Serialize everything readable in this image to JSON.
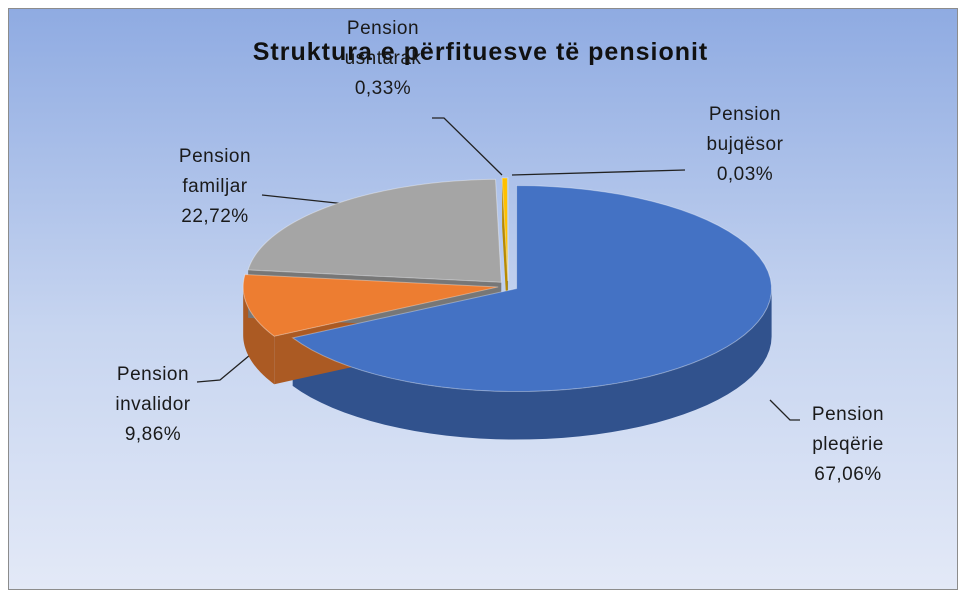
{
  "chart_data": {
    "type": "pie3d",
    "title": "Struktura e përfituesve të pensionit",
    "categories": [
      "Pension pleqërie",
      "Pension invalidor",
      "Pension familjar",
      "Pension ushtarak",
      "Pension bujqësor"
    ],
    "values": [
      67.06,
      9.86,
      22.72,
      0.33,
      0.03
    ],
    "value_labels": [
      "67,06%",
      "9,86%",
      "22,72%",
      "0,33%",
      "0,03%"
    ],
    "colors": [
      "#4472c4",
      "#ed7d31",
      "#a5a5a5",
      "#ffc000",
      "#5b9bd5"
    ]
  }
}
